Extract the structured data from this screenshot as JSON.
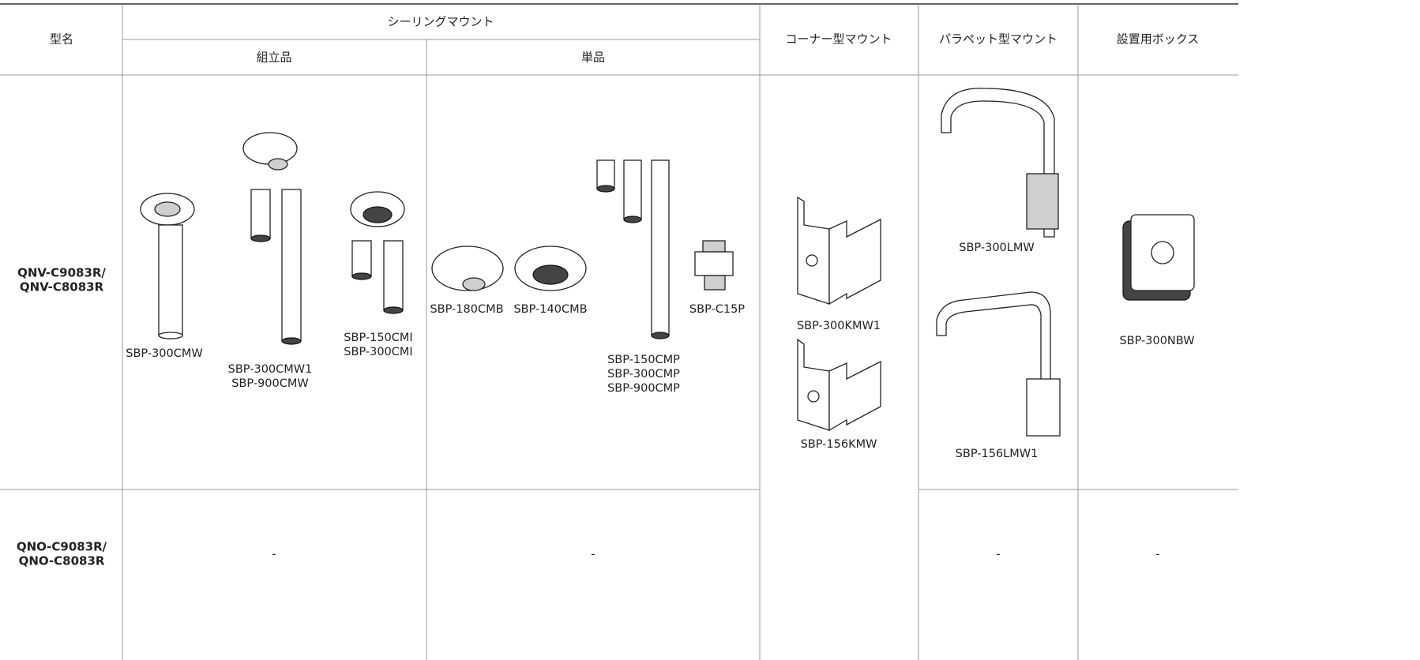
{
  "header": {
    "model": "型名",
    "ceiling_mount": "シーリングマウント",
    "assembled": "組立品",
    "single": "単品",
    "corner_mount": "コーナー型マウント",
    "parapet_mount": "パラペット型マウント",
    "box": "設置用ボックス"
  },
  "rows": [
    {
      "model": [
        "QNV-C9083R/",
        "QNV-C8083R"
      ],
      "assembled": [
        [
          "SBP-300CMW"
        ],
        [
          "SBP-300CMW1",
          "SBP-900CMW"
        ],
        [
          "SBP-150CMI",
          "SBP-300CMI"
        ]
      ],
      "single": [
        [
          "SBP-180CMB"
        ],
        [
          "SBP-140CMB"
        ],
        [
          "SBP-150CMP",
          "SBP-300CMP",
          "SBP-900CMP"
        ],
        [
          "SBP-C15P"
        ]
      ],
      "corner_mount": [
        [
          "SBP-300KMW1"
        ],
        [
          "SBP-156KMW"
        ]
      ],
      "parapet_mount": [
        [
          "SBP-300LMW"
        ],
        [
          "SBP-156LMW1"
        ]
      ],
      "box": [
        [
          "SBP-300NBW"
        ]
      ]
    },
    {
      "model": [
        "QNO-C9083R/",
        "QNO-C8083R"
      ],
      "assembled": "-",
      "single": "-",
      "parapet_mount": "-",
      "box": "-"
    }
  ]
}
